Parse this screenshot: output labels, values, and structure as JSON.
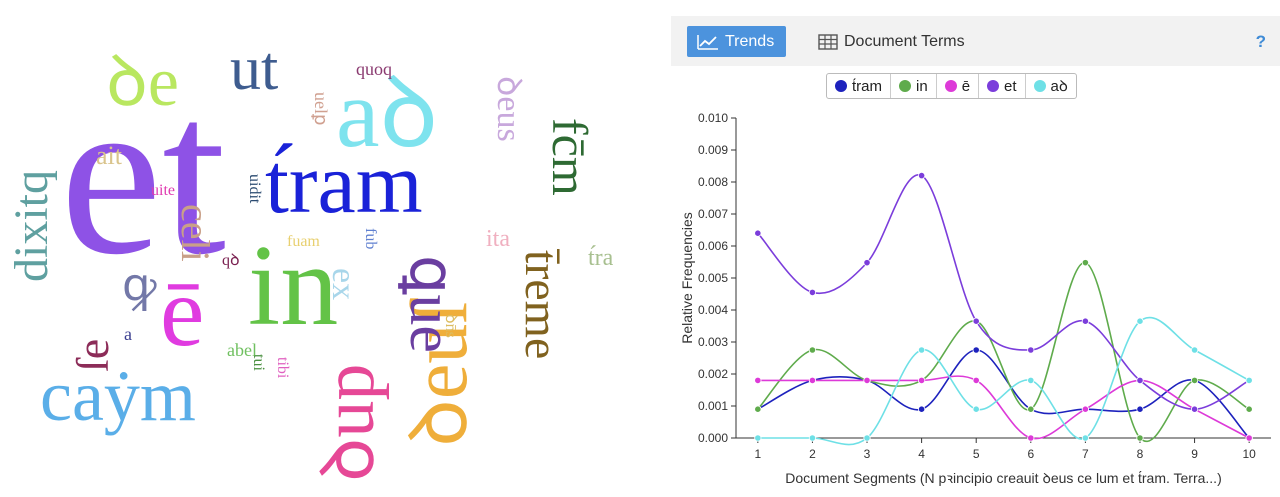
{
  "word_cloud": [
    {
      "text": "et",
      "color": "#8e52e6",
      "size": 230
    },
    {
      "text": "t́ram",
      "color": "#1a22d8",
      "size": 86
    },
    {
      "text": "in",
      "color": "#63c347",
      "size": 116
    },
    {
      "text": "aꝺ",
      "color": "#7ee3ee",
      "size": 98
    },
    {
      "text": "ꝺe",
      "color": "#b9e760",
      "size": 70
    },
    {
      "text": "ut",
      "color": "#3e5c8f",
      "size": 62
    },
    {
      "text": "caẏm",
      "color": "#5aaee8",
      "size": 72
    },
    {
      "text": "ē",
      "color": "#e03be0",
      "size": 100
    },
    {
      "text": "ꝺeuſ",
      "color": "#efae3a",
      "size": 80
    },
    {
      "text": "ꝗue",
      "color": "#6a3ea0",
      "size": 62
    },
    {
      "text": "t̄reme",
      "color": "#80621f",
      "size": 48
    },
    {
      "text": "fc̄m",
      "color": "#2e6a33",
      "size": 50
    },
    {
      "text": "dixitq",
      "color": "#5fa0a0",
      "size": 48
    },
    {
      "text": "ait",
      "color": "#d9c48c",
      "size": 26
    },
    {
      "text": "uite",
      "color": "#e03bb0",
      "size": 16
    },
    {
      "text": "celi",
      "color": "#c9a088",
      "size": 40
    },
    {
      "text": "ꝙ",
      "color": "#7378a8",
      "size": 46
    },
    {
      "text": "ſe",
      "color": "#8c2c58",
      "size": 46
    },
    {
      "text": "a",
      "color": "#3b3f90",
      "size": 18
    },
    {
      "text": "abel",
      "color": "#70c060",
      "size": 18
    },
    {
      "text": "tui",
      "color": "#4a9040",
      "size": 16
    },
    {
      "text": "tibi",
      "color": "#e060c0",
      "size": 16
    },
    {
      "text": "ꝺup",
      "color": "#e64896",
      "size": 74
    },
    {
      "text": "ex",
      "color": "#a8d6ea",
      "size": 34
    },
    {
      "text": "ꝺn̄s",
      "color": "#dcbc60",
      "size": 16
    },
    {
      "text": "ita",
      "color": "#f0b0c0",
      "size": 24
    },
    {
      "text": "fub",
      "color": "#6080d0",
      "size": 16
    },
    {
      "text": "fuam",
      "color": "#e8d070",
      "size": 16
    },
    {
      "text": "qꝺ",
      "color": "#7a2050",
      "size": 16
    },
    {
      "text": "uidit",
      "color": "#2a4a70",
      "size": 16
    },
    {
      "text": "ꝺeus",
      "color": "#c8a8dc",
      "size": 34
    },
    {
      "text": "uelꝑ",
      "color": "#d0a090",
      "size": 18
    },
    {
      "text": "quoq",
      "color": "#8a3a70",
      "size": 18
    },
    {
      "text": "t́ra",
      "color": "#a8c090",
      "size": 24
    }
  ],
  "tabs": [
    {
      "label": "Trends",
      "icon": "line-chart-icon",
      "active": true
    },
    {
      "label": "Document Terms",
      "icon": "table-icon",
      "active": false
    }
  ],
  "help_label": "?",
  "chart_data": {
    "type": "line",
    "x": [
      1,
      2,
      3,
      4,
      5,
      6,
      7,
      8,
      9,
      10
    ],
    "xlabel": "Document Segments (N pꝛincipio creauit ꝺeus ce lum et t́ram. Terra...)",
    "ylabel": "Relative Frequencies",
    "ylim": [
      0,
      0.01
    ],
    "yticks": [
      "0.000",
      "0.001",
      "0.002",
      "0.003",
      "0.004",
      "0.005",
      "0.006",
      "0.007",
      "0.008",
      "0.009",
      "0.010"
    ],
    "grid": false,
    "legend": "top-center",
    "series": [
      {
        "name": "t́ram",
        "color": "#1d22bd",
        "values": [
          0.0009,
          0.0018,
          0.0018,
          0.0009,
          0.00275,
          0.0009,
          0.0009,
          0.0009,
          0.0018,
          0.0
        ]
      },
      {
        "name": "in",
        "color": "#5fab4c",
        "values": [
          0.0009,
          0.00275,
          0.0018,
          0.0018,
          0.00365,
          0.0009,
          0.00548,
          0.0,
          0.0018,
          0.0009
        ]
      },
      {
        "name": "ē",
        "color": "#dd3ad8",
        "values": [
          0.0018,
          0.0018,
          0.0018,
          0.0018,
          0.0018,
          0.0,
          0.0009,
          0.0018,
          0.0009,
          0.0
        ]
      },
      {
        "name": "et",
        "color": "#7b3ddb",
        "values": [
          0.0064,
          0.00455,
          0.00548,
          0.0082,
          0.00365,
          0.00275,
          0.00365,
          0.0018,
          0.0009,
          0.0018
        ]
      },
      {
        "name": "aꝺ",
        "color": "#6ee0e6",
        "values": [
          0.0,
          0.0,
          0.0,
          0.00275,
          0.0009,
          0.0018,
          0.0,
          0.00365,
          0.00275,
          0.0018
        ]
      }
    ]
  }
}
